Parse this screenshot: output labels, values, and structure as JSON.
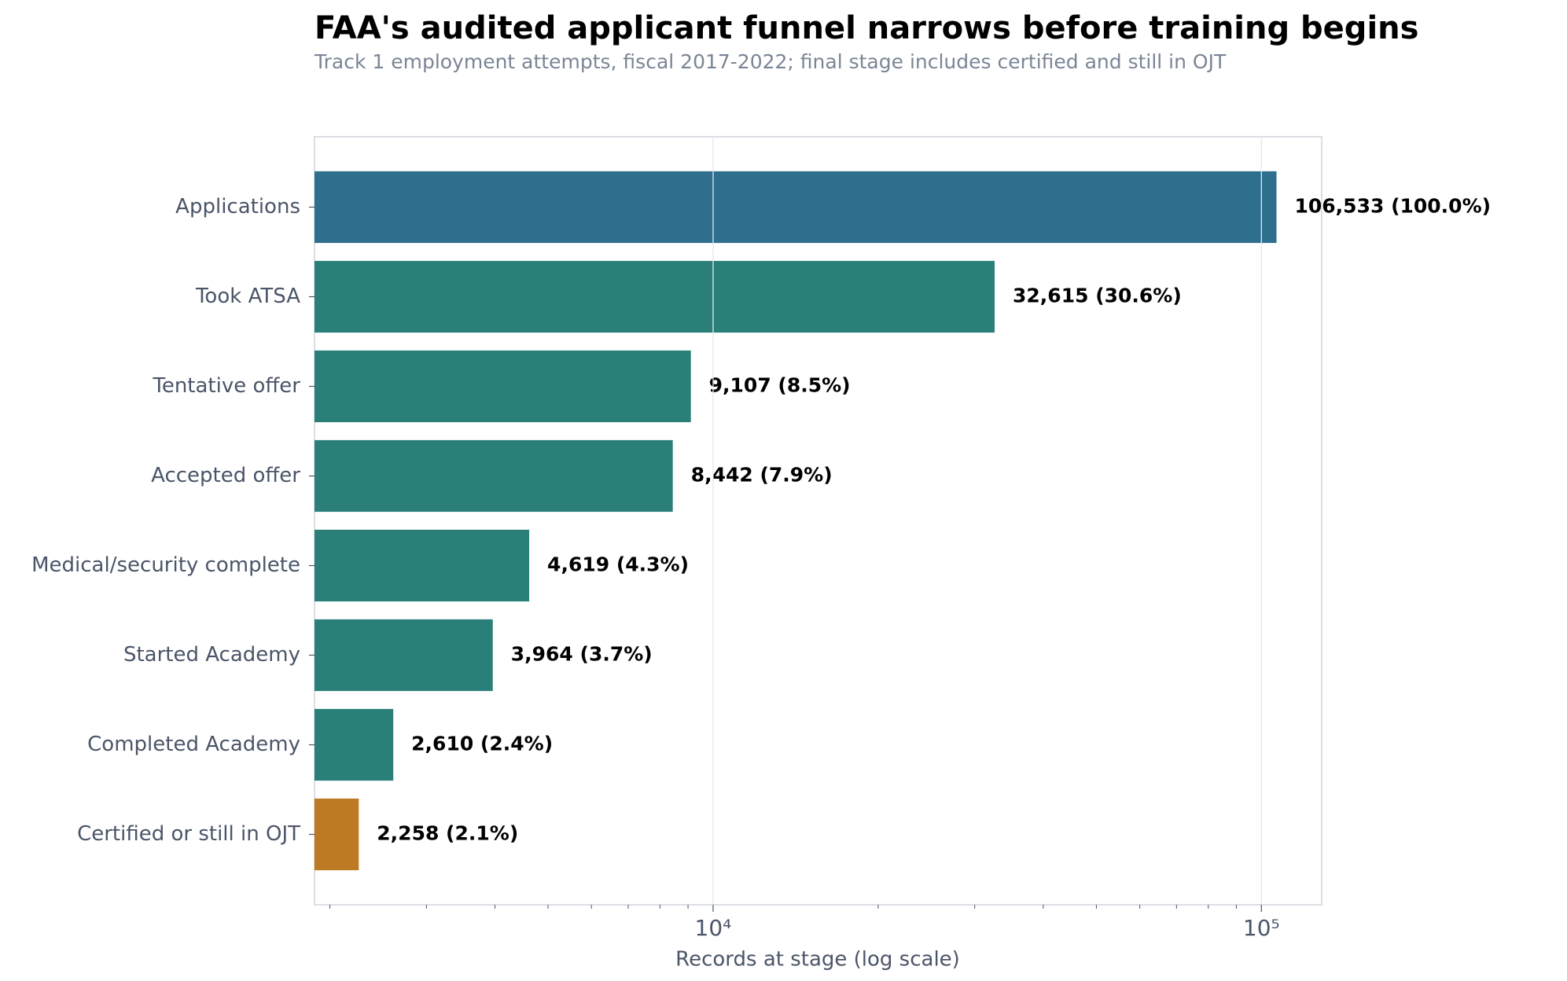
{
  "chart_data": {
    "type": "bar",
    "orientation": "horizontal",
    "title": "FAA's audited applicant funnel narrows before training begins",
    "subtitle": "Track 1 employment attempts, fiscal 2017-2022; final stage includes certified and still in OJT",
    "x_label": "Records at stage (log scale)",
    "categories": [
      "Applications",
      "Took ATSA",
      "Tentative offer",
      "Accepted offer",
      "Medical/security complete",
      "Started Academy",
      "Completed Academy",
      "Certified or still in OJT"
    ],
    "values": [
      106533,
      32615,
      9107,
      8442,
      4619,
      3964,
      2610,
      2258
    ],
    "value_labels": [
      "106,533  (100.0%)",
      "32,615  (30.6%)",
      "9,107  (8.5%)",
      "8,442  (7.9%)",
      "4,619  (4.3%)",
      "3,964  (3.7%)",
      "2,610  (2.4%)",
      "2,258  (2.1%)"
    ],
    "colors": [
      "#2e6f8e",
      "#2a7f78",
      "#2a7f78",
      "#2a7f78",
      "#2a7f78",
      "#2a7f78",
      "#2a7f78",
      "#bd7a22"
    ],
    "xscale": "log",
    "xlim": [
      1875,
      128800
    ],
    "xticks": [
      {
        "value": 10000,
        "label": "10⁴"
      },
      {
        "value": 100000,
        "label": "10⁵"
      }
    ],
    "xminorticks": [
      2000,
      3000,
      4000,
      5000,
      6000,
      7000,
      8000,
      9000,
      20000,
      30000,
      40000,
      50000,
      60000,
      70000,
      80000,
      90000
    ],
    "grid": true
  }
}
